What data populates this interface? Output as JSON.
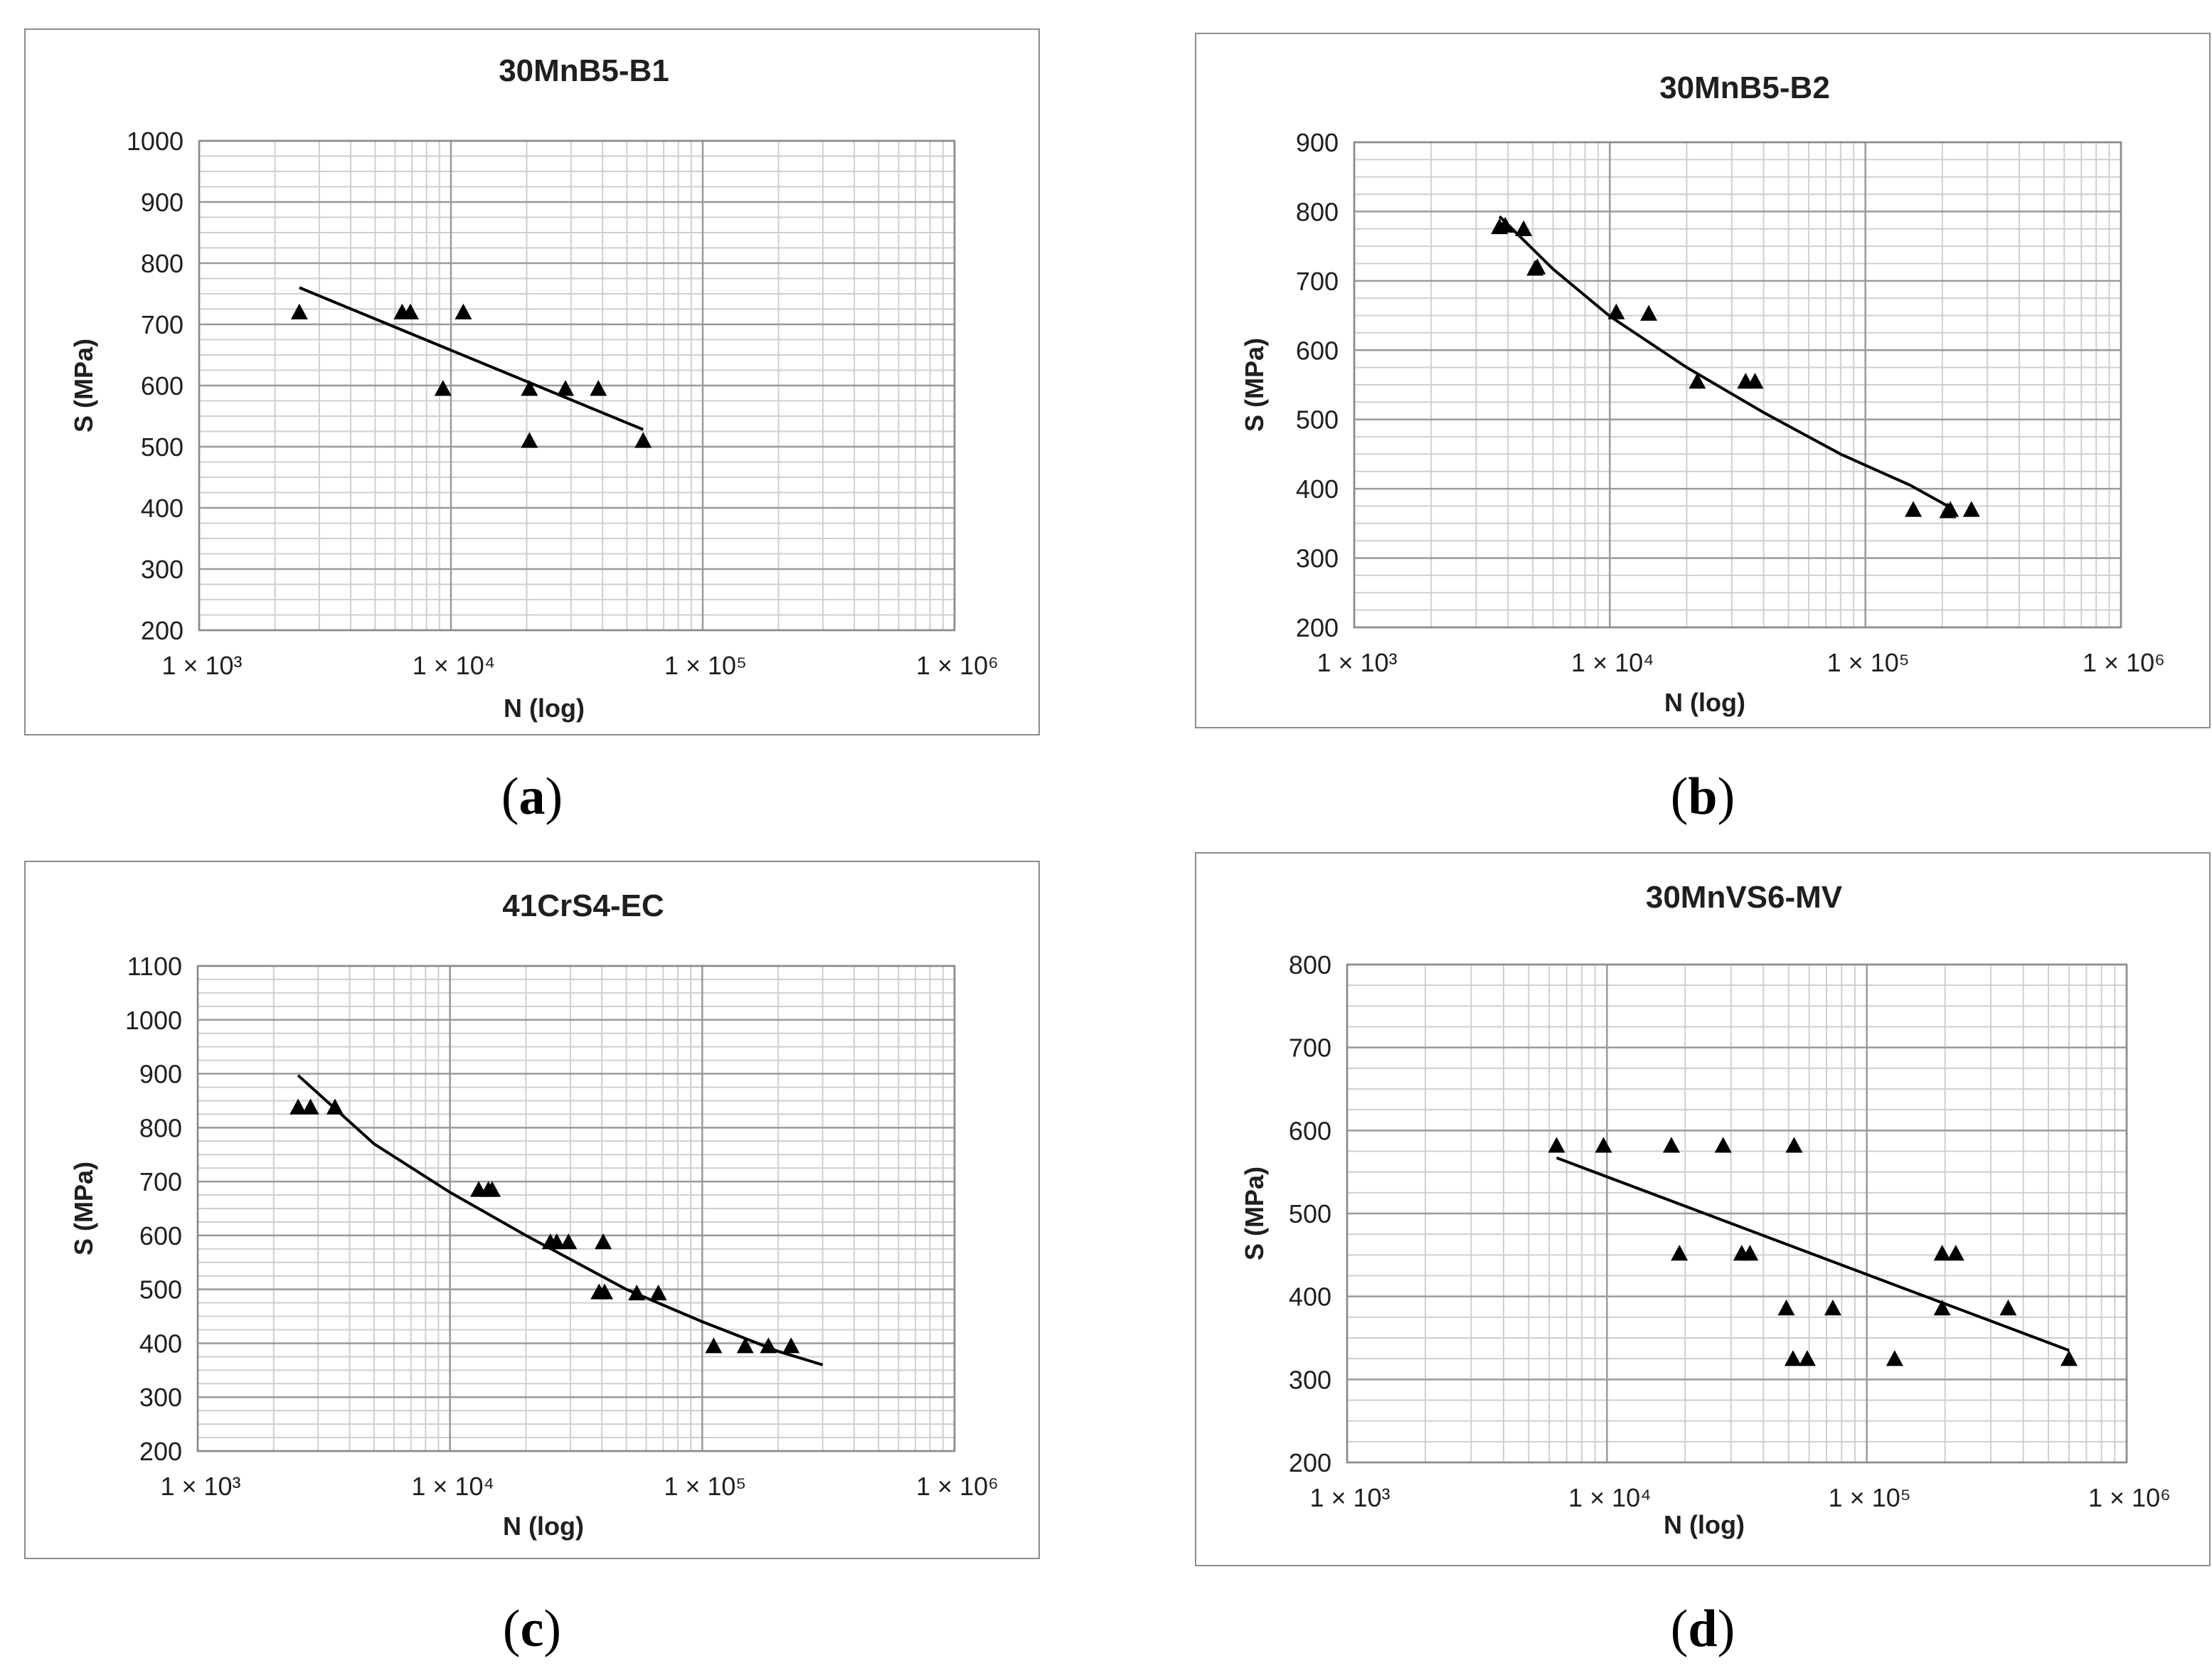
{
  "chart_data": [
    {
      "type": "scatter",
      "panel_label": "a",
      "title": "30MnB5-B1",
      "xlabel": "N (log)",
      "ylabel": "S (MPa)",
      "xscale": "log",
      "xlim": [
        1000,
        1000000
      ],
      "ylim": [
        200,
        1000
      ],
      "y_ticks": [
        200,
        300,
        400,
        500,
        600,
        700,
        800,
        900,
        1000
      ],
      "x_ticks": [
        1000,
        10000,
        100000,
        1000000
      ],
      "x_tick_labels": [
        "1 × 10³",
        "1 × 10⁴",
        "1 × 10⁵",
        "1 × 10⁶"
      ],
      "points": [
        [
          2500,
          720
        ],
        [
          6400,
          720
        ],
        [
          6900,
          720
        ],
        [
          11200,
          720
        ],
        [
          9300,
          595
        ],
        [
          20500,
          595
        ],
        [
          28500,
          595
        ],
        [
          38500,
          595
        ],
        [
          20500,
          510
        ],
        [
          58000,
          510
        ]
      ],
      "trend": [
        [
          2500,
          760
        ],
        [
          58000,
          528
        ]
      ]
    },
    {
      "type": "scatter",
      "panel_label": "b",
      "title": "30MnB5-B2",
      "xlabel": "N (log)",
      "ylabel": "S (MPa)",
      "xscale": "log",
      "xlim": [
        1000,
        1000000
      ],
      "ylim": [
        200,
        900
      ],
      "y_ticks": [
        200,
        300,
        400,
        500,
        600,
        700,
        800,
        900
      ],
      "x_ticks": [
        1000,
        10000,
        100000,
        1000000
      ],
      "x_tick_labels": [
        "1 × 10³",
        "1 × 10⁴",
        "1 × 10⁵",
        "1 × 10⁶"
      ],
      "points": [
        [
          3700,
          778
        ],
        [
          3900,
          780
        ],
        [
          4600,
          775
        ],
        [
          5100,
          718
        ],
        [
          5200,
          720
        ],
        [
          10600,
          655
        ],
        [
          14200,
          653
        ],
        [
          22000,
          555
        ],
        [
          34000,
          555
        ],
        [
          37000,
          555
        ],
        [
          154000,
          370
        ],
        [
          210000,
          368
        ],
        [
          215000,
          370
        ],
        [
          260000,
          370
        ]
      ],
      "trend": [
        [
          3700,
          793
        ],
        [
          6000,
          717
        ],
        [
          10000,
          649
        ],
        [
          20000,
          575
        ],
        [
          40000,
          510
        ],
        [
          80000,
          450
        ],
        [
          150000,
          405
        ],
        [
          215000,
          373
        ]
      ]
    },
    {
      "type": "scatter",
      "panel_label": "c",
      "title": "41CrS4-EC",
      "xlabel": "N (log)",
      "ylabel": "S (MPa)",
      "xscale": "log",
      "xlim": [
        1000,
        1000000
      ],
      "ylim": [
        200,
        1100
      ],
      "y_ticks": [
        200,
        300,
        400,
        500,
        600,
        700,
        800,
        900,
        1000,
        1100
      ],
      "x_ticks": [
        1000,
        10000,
        100000,
        1000000
      ],
      "x_tick_labels": [
        "1 × 10³",
        "1 × 10⁴",
        "1 × 10⁵",
        "1 × 10⁶"
      ],
      "points": [
        [
          2500,
          838
        ],
        [
          2800,
          838
        ],
        [
          3500,
          838
        ],
        [
          13000,
          685
        ],
        [
          14200,
          685
        ],
        [
          14700,
          685
        ],
        [
          25000,
          588
        ],
        [
          26500,
          588
        ],
        [
          29500,
          588
        ],
        [
          40500,
          588
        ],
        [
          39000,
          495
        ],
        [
          41000,
          495
        ],
        [
          55000,
          493
        ],
        [
          67000,
          493
        ],
        [
          111000,
          395
        ],
        [
          148000,
          395
        ],
        [
          183000,
          395
        ],
        [
          225000,
          395
        ]
      ],
      "trend": [
        [
          2500,
          897
        ],
        [
          5000,
          770
        ],
        [
          10000,
          680
        ],
        [
          20000,
          600
        ],
        [
          50000,
          500
        ],
        [
          100000,
          440
        ],
        [
          200000,
          385
        ],
        [
          300000,
          360
        ]
      ]
    },
    {
      "type": "scatter",
      "panel_label": "d",
      "title": "30MnVS6-MV",
      "xlabel": "N (log)",
      "ylabel": "S (MPa)",
      "xscale": "log",
      "xlim": [
        1000,
        1000000
      ],
      "ylim": [
        200,
        800
      ],
      "y_ticks": [
        200,
        300,
        400,
        500,
        600,
        700,
        800
      ],
      "x_ticks": [
        1000,
        10000,
        100000,
        1000000
      ],
      "x_tick_labels": [
        "1 × 10³",
        "1 × 10⁴",
        "1 × 10⁵",
        "1 × 10⁶"
      ],
      "points": [
        [
          6400,
          582
        ],
        [
          9700,
          582
        ],
        [
          17700,
          582
        ],
        [
          28000,
          582
        ],
        [
          52500,
          582
        ],
        [
          19000,
          452
        ],
        [
          33000,
          452
        ],
        [
          35500,
          452
        ],
        [
          195000,
          452
        ],
        [
          220000,
          452
        ],
        [
          49000,
          386
        ],
        [
          74000,
          386
        ],
        [
          195000,
          386
        ],
        [
          350000,
          386
        ],
        [
          52000,
          325
        ],
        [
          59000,
          325
        ],
        [
          128000,
          325
        ],
        [
          600000,
          325
        ]
      ],
      "trend": [
        [
          6400,
          567
        ],
        [
          600000,
          335
        ]
      ]
    }
  ]
}
